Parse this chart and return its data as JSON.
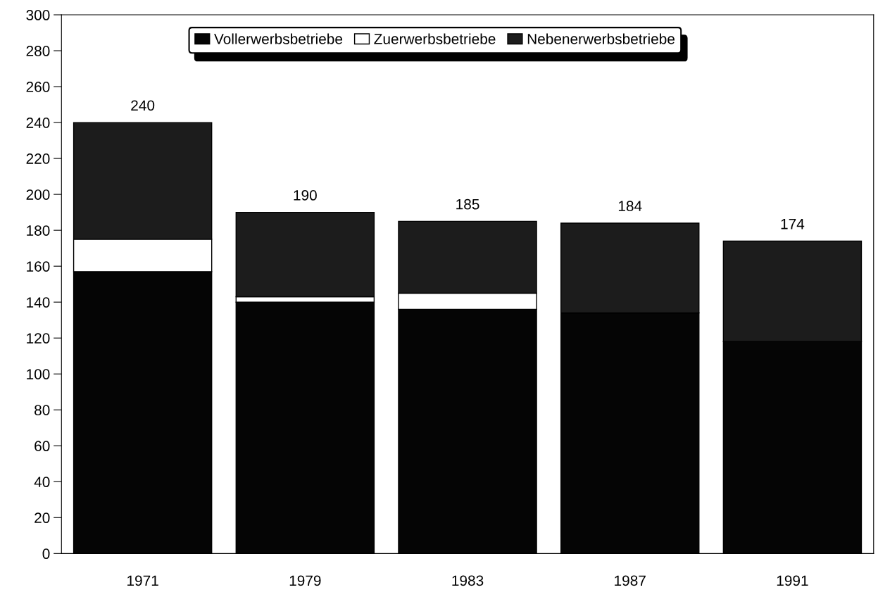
{
  "chart_data": {
    "type": "bar",
    "stacked": true,
    "categories": [
      "1971",
      "1979",
      "1983",
      "1987",
      "1991"
    ],
    "series": [
      {
        "name": "Vollerwerbsbetriebe",
        "color": "#050505",
        "values": [
          157,
          140,
          136,
          134,
          118
        ]
      },
      {
        "name": "Zuerwerbsbetriebe",
        "color": "#ffffff",
        "values": [
          18,
          3,
          9,
          0,
          0
        ]
      },
      {
        "name": "Nebenerwerbsbetriebe",
        "color": "#1c1c1c",
        "values": [
          65,
          47,
          40,
          50,
          56
        ]
      }
    ],
    "totals": [
      "240",
      "190",
      "185",
      "184",
      "174"
    ],
    "ylim": [
      0,
      300
    ],
    "yticks": [
      0,
      20,
      40,
      60,
      80,
      100,
      120,
      140,
      160,
      180,
      200,
      220,
      240,
      260,
      280,
      300
    ],
    "grid": false,
    "legend": "top"
  }
}
